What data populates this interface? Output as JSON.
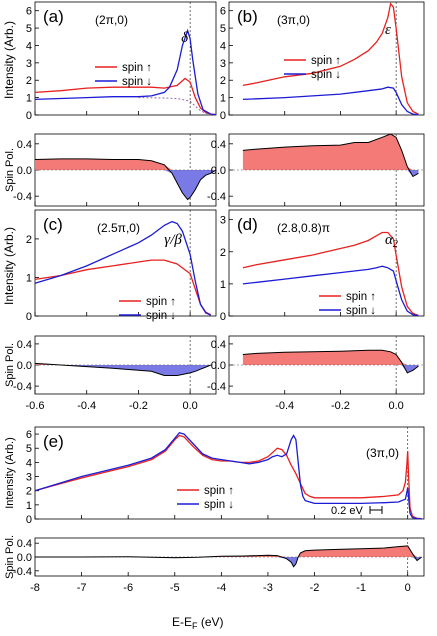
{
  "axis_labels": {
    "intensity": "Intensity (Arb.)",
    "spin_pol": "Spin Pol.",
    "x": "E-E",
    "x_sub": "F",
    "x_unit": " (eV)"
  },
  "scale_bar": "0.2 eV",
  "colors": {
    "up": "#e8211f",
    "down": "#1c1cd6",
    "up_fill": "#f47a78",
    "down_fill": "#7a7ae6"
  },
  "chart_data": [
    {
      "panel": "(a)",
      "type": "line",
      "momentum": "(2π,0)",
      "peak_label": "δ",
      "xlim": [
        -0.6,
        0.1
      ],
      "ylim": [
        0,
        6.5
      ],
      "yticks": [
        0,
        1,
        2,
        3,
        4,
        5,
        6
      ],
      "pol_ylim": [
        -0.55,
        0.55
      ],
      "pol_yticks": [
        0.4,
        0.0,
        -0.4
      ],
      "xticks": [],
      "legend": {
        "up": "spin ↑",
        "down": "spin ↓"
      },
      "series": [
        {
          "name": "spin ↑",
          "x": [
            -0.6,
            -0.5,
            -0.4,
            -0.3,
            -0.2,
            -0.15,
            -0.1,
            -0.05,
            -0.02,
            0,
            0.02,
            0.04,
            0.06,
            0.08,
            0.1
          ],
          "y": [
            1.3,
            1.4,
            1.55,
            1.6,
            1.6,
            1.6,
            1.55,
            1.7,
            2.1,
            1.9,
            1.0,
            0.4,
            0.15,
            0.05,
            0.02
          ]
        },
        {
          "name": "spin ↓",
          "x": [
            -0.6,
            -0.5,
            -0.4,
            -0.3,
            -0.2,
            -0.15,
            -0.1,
            -0.08,
            -0.05,
            -0.03,
            -0.01,
            0,
            0.01,
            0.03,
            0.05,
            0.08,
            0.1
          ],
          "y": [
            0.9,
            0.95,
            1.0,
            1.05,
            1.05,
            1.1,
            1.3,
            1.6,
            2.6,
            4.0,
            4.85,
            4.4,
            3.2,
            1.2,
            0.3,
            0.05,
            0.02
          ]
        },
        {
          "name": "background",
          "x": [
            -0.2,
            -0.1,
            -0.05,
            0,
            0.02,
            0.04,
            0.06,
            0.08
          ],
          "y": [
            1.0,
            0.98,
            0.95,
            0.8,
            0.5,
            0.25,
            0.1,
            0.03
          ]
        }
      ],
      "spin_pol": {
        "x": [
          -0.6,
          -0.5,
          -0.4,
          -0.3,
          -0.2,
          -0.15,
          -0.1,
          -0.07,
          -0.05,
          -0.03,
          -0.01,
          0,
          0.02,
          0.04,
          0.06,
          0.08,
          0.1
        ],
        "y": [
          0.16,
          0.17,
          0.17,
          0.16,
          0.16,
          0.14,
          0.08,
          -0.05,
          -0.2,
          -0.35,
          -0.45,
          -0.42,
          -0.3,
          -0.15,
          -0.08,
          -0.05,
          0.0
        ]
      }
    },
    {
      "panel": "(b)",
      "type": "line",
      "momentum": "(3π,0)",
      "peak_label": "ε",
      "xlim": [
        -0.6,
        0.1
      ],
      "ylim": [
        0,
        6.5
      ],
      "yticks": [
        0,
        1,
        2,
        3,
        4,
        5,
        6
      ],
      "pol_ylim": [
        -0.55,
        0.55
      ],
      "pol_yticks": [
        0.4,
        0.0,
        -0.4
      ],
      "xticks": [],
      "legend": {
        "up": "spin ↑",
        "down": "spin ↓"
      },
      "series": [
        {
          "name": "spin ↑",
          "x": [
            -0.55,
            -0.5,
            -0.4,
            -0.3,
            -0.2,
            -0.15,
            -0.1,
            -0.07,
            -0.05,
            -0.03,
            -0.02,
            -0.01,
            0,
            0.02,
            0.04,
            0.06,
            0.08
          ],
          "y": [
            1.7,
            1.85,
            2.2,
            2.4,
            2.8,
            3.2,
            3.7,
            4.2,
            4.7,
            5.6,
            6.4,
            6.2,
            5.0,
            2.2,
            0.7,
            0.2,
            0.05
          ]
        },
        {
          "name": "spin ↓",
          "x": [
            -0.55,
            -0.4,
            -0.3,
            -0.2,
            -0.1,
            -0.05,
            -0.03,
            -0.01,
            0,
            0.02,
            0.04,
            0.06,
            0.08
          ],
          "y": [
            0.9,
            1.0,
            1.1,
            1.2,
            1.4,
            1.5,
            1.6,
            1.55,
            1.3,
            0.6,
            0.2,
            0.05,
            0.02
          ]
        }
      ],
      "spin_pol": {
        "x": [
          -0.55,
          -0.5,
          -0.4,
          -0.3,
          -0.2,
          -0.15,
          -0.1,
          -0.05,
          -0.02,
          0,
          0.02,
          0.04,
          0.06,
          0.08
        ],
        "y": [
          0.3,
          0.32,
          0.35,
          0.37,
          0.38,
          0.42,
          0.42,
          0.5,
          0.55,
          0.5,
          0.3,
          0.05,
          -0.1,
          -0.05
        ]
      }
    },
    {
      "panel": "(c)",
      "type": "line",
      "momentum": "(2.5π,0)",
      "peak_label": "γ/β",
      "xlim": [
        -0.6,
        0.1
      ],
      "ylim": [
        0,
        2.75
      ],
      "yticks": [
        0,
        1,
        2
      ],
      "pol_ylim": [
        -0.55,
        0.55
      ],
      "pol_yticks": [
        0.4,
        0.0,
        -0.4
      ],
      "xticks": [
        -0.6,
        -0.4,
        -0.2,
        0.0
      ],
      "legend": {
        "up": "spin ↑",
        "down": "spin ↓"
      },
      "series": [
        {
          "name": "spin ↑",
          "x": [
            -0.6,
            -0.5,
            -0.4,
            -0.3,
            -0.2,
            -0.15,
            -0.1,
            -0.05,
            0,
            0.02,
            0.04,
            0.06,
            0.08
          ],
          "y": [
            0.95,
            1.05,
            1.2,
            1.3,
            1.4,
            1.45,
            1.45,
            1.35,
            1.1,
            0.7,
            0.3,
            0.1,
            0.03
          ]
        },
        {
          "name": "spin ↓",
          "x": [
            -0.6,
            -0.5,
            -0.4,
            -0.3,
            -0.2,
            -0.15,
            -0.1,
            -0.07,
            -0.05,
            -0.03,
            0,
            0.02,
            0.04,
            0.06,
            0.08
          ],
          "y": [
            0.85,
            1.05,
            1.3,
            1.6,
            1.9,
            2.1,
            2.35,
            2.45,
            2.4,
            2.2,
            1.6,
            0.9,
            0.3,
            0.08,
            0.02
          ]
        }
      ],
      "spin_pol": {
        "x": [
          -0.6,
          -0.5,
          -0.4,
          -0.3,
          -0.2,
          -0.15,
          -0.1,
          -0.05,
          0,
          0.02,
          0.04,
          0.06,
          0.08
        ],
        "y": [
          0.03,
          0.0,
          -0.03,
          -0.06,
          -0.1,
          -0.12,
          -0.2,
          -0.2,
          -0.15,
          -0.12,
          -0.08,
          -0.04,
          0.0
        ]
      }
    },
    {
      "panel": "(d)",
      "type": "line",
      "momentum": "(2.8,0.8)π",
      "peak_label": "α2",
      "xlim": [
        -0.6,
        0.1
      ],
      "ylim": [
        0,
        3.3
      ],
      "yticks": [
        0,
        1,
        2,
        3
      ],
      "pol_ylim": [
        -0.55,
        0.55
      ],
      "pol_yticks": [
        0.4,
        0.0,
        -0.4
      ],
      "xticks": [
        -0.4,
        -0.2,
        0.0
      ],
      "legend": {
        "up": "spin ↑",
        "down": "spin ↓"
      },
      "series": [
        {
          "name": "spin ↑",
          "x": [
            -0.55,
            -0.5,
            -0.4,
            -0.3,
            -0.2,
            -0.15,
            -0.1,
            -0.07,
            -0.05,
            -0.03,
            -0.01,
            0,
            0.02,
            0.04,
            0.06,
            0.08
          ],
          "y": [
            1.5,
            1.6,
            1.75,
            1.9,
            2.1,
            2.2,
            2.35,
            2.5,
            2.6,
            2.6,
            2.4,
            1.9,
            0.9,
            0.3,
            0.08,
            0.02
          ]
        },
        {
          "name": "spin ↓",
          "x": [
            -0.55,
            -0.5,
            -0.4,
            -0.3,
            -0.2,
            -0.15,
            -0.1,
            -0.07,
            -0.05,
            -0.03,
            -0.01,
            0,
            0.02,
            0.04,
            0.06,
            0.08
          ],
          "y": [
            1.0,
            1.05,
            1.15,
            1.25,
            1.35,
            1.4,
            1.45,
            1.5,
            1.55,
            1.5,
            1.4,
            1.1,
            0.5,
            0.15,
            0.04,
            0.01
          ]
        }
      ],
      "spin_pol": {
        "x": [
          -0.55,
          -0.5,
          -0.4,
          -0.3,
          -0.2,
          -0.15,
          -0.1,
          -0.05,
          -0.02,
          0,
          0.02,
          0.04,
          0.06,
          0.08
        ],
        "y": [
          0.2,
          0.22,
          0.24,
          0.25,
          0.26,
          0.27,
          0.28,
          0.28,
          0.25,
          0.2,
          0.05,
          -0.15,
          -0.1,
          -0.02
        ]
      }
    },
    {
      "panel": "(e)",
      "type": "line",
      "momentum": "(3π,0)",
      "peak_label": "",
      "xlim": [
        -8,
        0.35
      ],
      "ylim": [
        0,
        6.5
      ],
      "yticks": [
        0,
        1,
        2,
        3,
        4,
        5,
        6
      ],
      "pol_ylim": [
        -0.55,
        0.55
      ],
      "pol_yticks": [
        0.4,
        0.0,
        -0.4
      ],
      "xticks": [
        -8,
        -7,
        -6,
        -5,
        -4,
        -3,
        -2,
        -1,
        0
      ],
      "legend": {
        "up": "spin ↑",
        "down": "spin ↓"
      },
      "series": [
        {
          "name": "spin ↑",
          "x": [
            -8,
            -7.5,
            -7,
            -6.5,
            -6,
            -5.5,
            -5.2,
            -5,
            -4.9,
            -4.8,
            -4.6,
            -4.4,
            -4.2,
            -4,
            -3.8,
            -3.6,
            -3.4,
            -3.2,
            -3,
            -2.9,
            -2.8,
            -2.7,
            -2.6,
            -2.5,
            -2.4,
            -2.3,
            -2.2,
            -2.1,
            -2,
            -1.5,
            -1,
            -0.5,
            -0.2,
            -0.1,
            -0.05,
            -0.02,
            0,
            0.02,
            0.05,
            0.1,
            0.2,
            0.3
          ],
          "y": [
            2.0,
            2.45,
            2.9,
            3.3,
            3.7,
            4.2,
            4.8,
            5.6,
            5.9,
            5.8,
            5.1,
            4.5,
            4.2,
            4.1,
            4.1,
            4.0,
            4.0,
            4.1,
            4.4,
            4.7,
            5.0,
            4.9,
            4.5,
            3.8,
            3.2,
            2.5,
            1.8,
            1.6,
            1.5,
            1.5,
            1.5,
            1.6,
            1.7,
            2.0,
            2.6,
            3.8,
            4.8,
            3.0,
            0.8,
            0.2,
            0.05,
            0.02
          ]
        },
        {
          "name": "spin ↓",
          "x": [
            -8,
            -7.5,
            -7,
            -6.5,
            -6,
            -5.5,
            -5.2,
            -5,
            -4.9,
            -4.8,
            -4.6,
            -4.4,
            -4.2,
            -4,
            -3.8,
            -3.6,
            -3.4,
            -3.2,
            -3,
            -2.9,
            -2.8,
            -2.7,
            -2.6,
            -2.5,
            -2.45,
            -2.4,
            -2.35,
            -2.3,
            -2.25,
            -2.2,
            -2.1,
            -2,
            -1.5,
            -1,
            -0.5,
            -0.2,
            -0.05,
            0,
            0.02,
            0.05,
            0.1,
            0.2,
            0.3
          ],
          "y": [
            2.0,
            2.5,
            3.0,
            3.4,
            3.8,
            4.3,
            4.9,
            5.7,
            6.1,
            6.0,
            5.3,
            4.6,
            4.3,
            4.2,
            4.1,
            4.0,
            3.9,
            4.0,
            4.2,
            4.4,
            4.5,
            4.4,
            4.6,
            5.6,
            5.9,
            5.6,
            4.0,
            2.4,
            1.6,
            1.3,
            1.2,
            1.1,
            1.1,
            1.1,
            1.15,
            1.2,
            1.4,
            2.2,
            1.5,
            0.4,
            0.1,
            0.03,
            0.01
          ]
        }
      ],
      "spin_pol": {
        "x": [
          -8,
          -7,
          -6,
          -5,
          -4.5,
          -4,
          -3.5,
          -3,
          -2.8,
          -2.6,
          -2.5,
          -2.45,
          -2.4,
          -2.35,
          -2.3,
          -2.2,
          -2,
          -1.5,
          -1,
          -0.5,
          -0.2,
          0,
          0.1,
          0.2,
          0.3
        ],
        "y": [
          0.0,
          0.0,
          0.01,
          -0.02,
          -0.01,
          0.02,
          0.03,
          0.05,
          0.04,
          -0.05,
          -0.15,
          -0.28,
          -0.2,
          0.0,
          0.12,
          0.18,
          0.2,
          0.22,
          0.24,
          0.26,
          0.3,
          0.32,
          0.1,
          -0.1,
          0.0
        ]
      }
    }
  ]
}
